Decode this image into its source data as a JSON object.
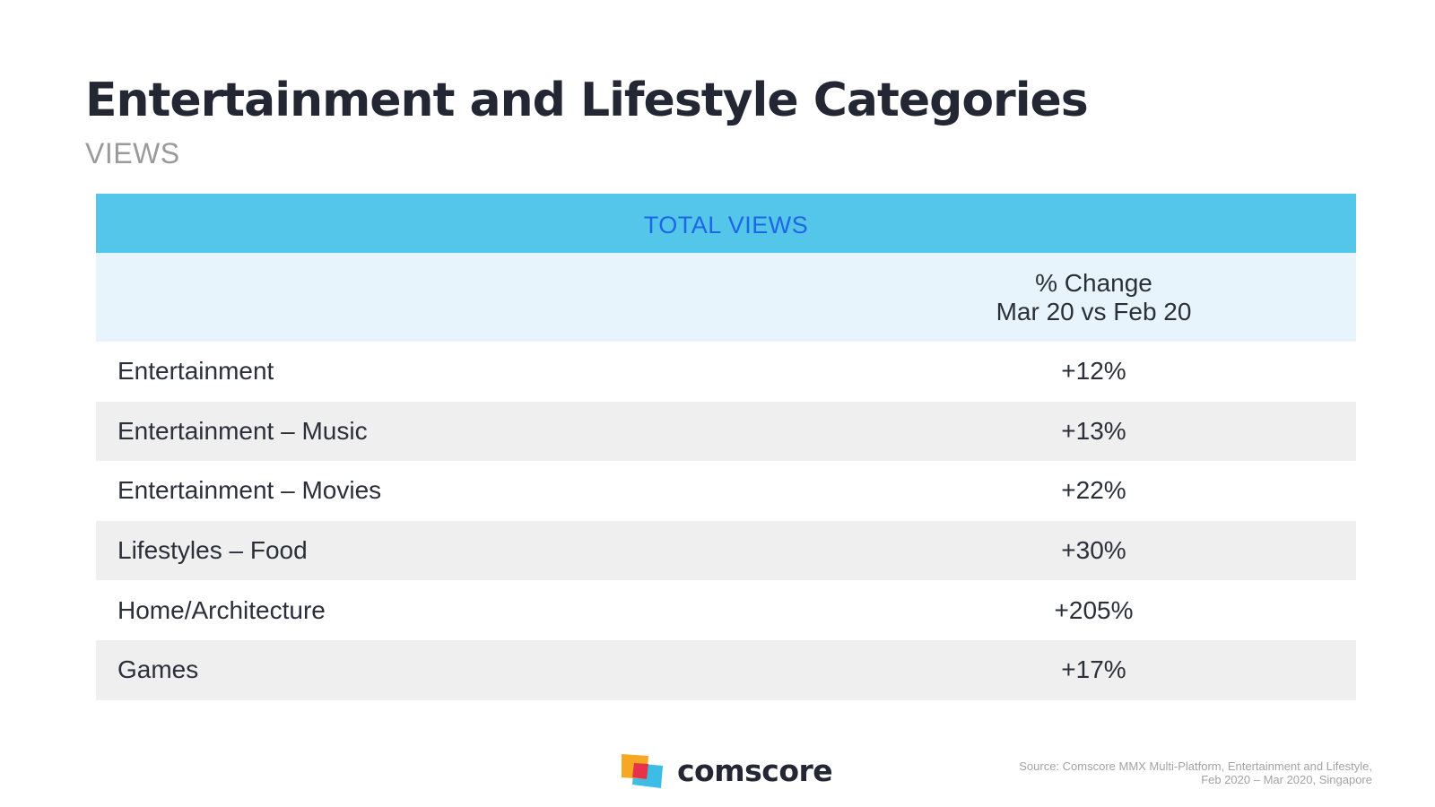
{
  "title": "Entertainment and Lifestyle Categories",
  "subtitle": "VIEWS",
  "table": {
    "header": "TOTAL VIEWS",
    "column_header_line1": "% Change",
    "column_header_line2": "Mar 20 vs Feb 20",
    "rows": [
      {
        "label": "Entertainment",
        "value": "+12%"
      },
      {
        "label": "Entertainment – Music",
        "value": "+13%"
      },
      {
        "label": "Entertainment – Movies",
        "value": "+22%"
      },
      {
        "label": "Lifestyles – Food",
        "value": "+30%"
      },
      {
        "label": "Home/Architecture",
        "value": "+205%"
      },
      {
        "label": "Games",
        "value": "+17%"
      }
    ]
  },
  "chart_data": {
    "type": "table",
    "title": "Entertainment and Lifestyle Categories",
    "subtitle": "VIEWS",
    "header": "TOTAL VIEWS",
    "columns": [
      "",
      "% Change Mar 20 vs Feb 20"
    ],
    "categories": [
      "Entertainment",
      "Entertainment – Music",
      "Entertainment – Movies",
      "Lifestyles – Food",
      "Home/Architecture",
      "Games"
    ],
    "values": [
      12,
      13,
      22,
      30,
      205,
      17
    ],
    "unit": "% change"
  },
  "logo": {
    "wordmark": "comscore",
    "colors": {
      "orange": "#f7a823",
      "red": "#e5334b",
      "blue": "#3dbde6"
    }
  },
  "source": {
    "line1": "Source: Comscore MMX Multi-Platform, Entertainment and Lifestyle,",
    "line2": "Feb 2020 – Mar 2020, Singapore"
  },
  "colors": {
    "header_bg": "#54c6e9",
    "header_text": "#1f66e6",
    "subheader_bg": "#e8f4fb",
    "shaded_row_bg": "#efefef"
  }
}
